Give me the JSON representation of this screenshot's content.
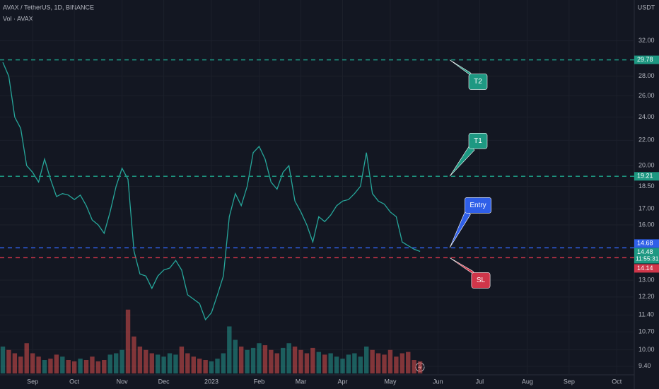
{
  "chart_data": {
    "type": "line",
    "title": "AVAX / TetherUS, 1D, BINANCE",
    "subtitle": "Vol · AVAX",
    "currency": "USDT",
    "yscale": "log",
    "grid": true,
    "color": "#26a69a",
    "ylim": [
      9.1,
      37.3
    ],
    "yticks": [
      {
        "value": 32,
        "label": "32.00"
      },
      {
        "value": 28,
        "label": "28.00"
      },
      {
        "value": 26,
        "label": "26.00"
      },
      {
        "value": 24,
        "label": "24.00"
      },
      {
        "value": 22,
        "label": "22.00"
      },
      {
        "value": 20,
        "label": "20.00"
      },
      {
        "value": 18.5,
        "label": "18.50"
      },
      {
        "value": 17,
        "label": "17.00"
      },
      {
        "value": 16,
        "label": "16.00"
      },
      {
        "value": 13,
        "label": "13.00"
      },
      {
        "value": 12.2,
        "label": "12.20"
      },
      {
        "value": 11.4,
        "label": "11.40"
      },
      {
        "value": 10.7,
        "label": "10.70"
      },
      {
        "value": 10,
        "label": "10.00"
      },
      {
        "value": 9.4,
        "label": "9.40"
      }
    ],
    "categories": [
      null,
      null,
      null,
      null,
      null,
      "Sep",
      null,
      null,
      null,
      null,
      null,
      null,
      "Oct",
      null,
      null,
      null,
      null,
      null,
      null,
      null,
      "Nov",
      null,
      null,
      null,
      null,
      null,
      null,
      "Dec",
      null,
      null,
      null,
      null,
      null,
      null,
      null,
      "2023",
      null,
      null,
      null,
      null,
      null,
      null,
      null,
      "Feb",
      null,
      null,
      null,
      null,
      null,
      null,
      "Mar",
      null,
      null,
      null,
      null,
      null,
      null,
      "Apr",
      null,
      null,
      null,
      null,
      null,
      null,
      null,
      "May",
      null,
      null,
      null,
      null,
      null,
      null,
      null,
      "Jun",
      null,
      null,
      null,
      null,
      null,
      null,
      "Jul",
      null,
      null,
      null,
      null,
      null,
      null,
      null,
      "Aug",
      null,
      null,
      null,
      null,
      null,
      null,
      "Sep",
      null,
      null,
      null,
      null,
      null,
      null,
      null,
      "Oct",
      null,
      null,
      null
    ],
    "values": [
      29.5,
      28,
      24,
      23,
      20,
      19.5,
      18.8,
      20.5,
      19,
      17.8,
      18,
      17.9,
      17.6,
      17.9,
      17.2,
      16.3,
      16,
      15.5,
      16.8,
      18.5,
      19.8,
      19,
      14.5,
      13.3,
      13.2,
      12.6,
      13.2,
      13.5,
      13.6,
      14,
      13.5,
      12.3,
      12.1,
      11.9,
      11.2,
      11.5,
      12.3,
      13.2,
      16.5,
      18,
      17.2,
      18.5,
      21,
      21.5,
      20.5,
      18.8,
      18.3,
      19.5,
      20,
      17.5,
      16.8,
      16,
      15,
      16.5,
      16.2,
      16.6,
      17.2,
      17.5,
      17.6,
      18,
      18.5,
      21,
      18,
      17.5,
      17.3,
      16.8,
      16.5,
      15,
      14.8,
      14.6,
      14.48,
      null,
      null,
      null,
      null,
      null,
      null,
      null,
      null,
      null,
      null,
      null,
      null,
      null,
      null,
      null,
      null,
      null,
      null,
      null,
      null,
      null,
      null,
      null,
      null,
      null,
      null,
      null,
      null,
      null,
      null,
      null,
      null,
      null,
      null,
      null,
      null
    ],
    "volume": [
      40,
      35,
      30,
      25,
      45,
      30,
      25,
      20,
      22,
      28,
      25,
      20,
      18,
      22,
      20,
      25,
      18,
      20,
      28,
      30,
      35,
      95,
      55,
      40,
      35,
      30,
      28,
      25,
      30,
      28,
      40,
      30,
      25,
      22,
      20,
      18,
      22,
      30,
      70,
      50,
      40,
      35,
      38,
      45,
      42,
      35,
      30,
      38,
      45,
      40,
      35,
      30,
      38,
      32,
      28,
      30,
      25,
      22,
      28,
      30,
      25,
      40,
      35,
      30,
      28,
      35,
      25,
      30,
      32,
      20,
      18,
      null,
      null,
      null,
      null,
      null,
      null,
      null,
      null,
      null,
      null,
      null,
      null,
      null,
      null,
      null,
      null,
      null,
      null,
      null,
      null,
      null,
      null,
      null,
      null,
      null,
      null,
      null,
      null,
      null,
      null,
      null,
      null,
      null,
      null,
      null,
      null
    ],
    "countdown": "11:55:31",
    "levels": [
      {
        "name": "T2",
        "value": 29.78,
        "color": "#1e9882"
      },
      {
        "name": "T1",
        "value": 19.21,
        "color": "#1e9882"
      },
      {
        "name": "Entry",
        "value": 14.68,
        "color": "#2f5fe8"
      },
      {
        "name": "SL",
        "value": 14.14,
        "color": "#d0364a"
      }
    ]
  }
}
